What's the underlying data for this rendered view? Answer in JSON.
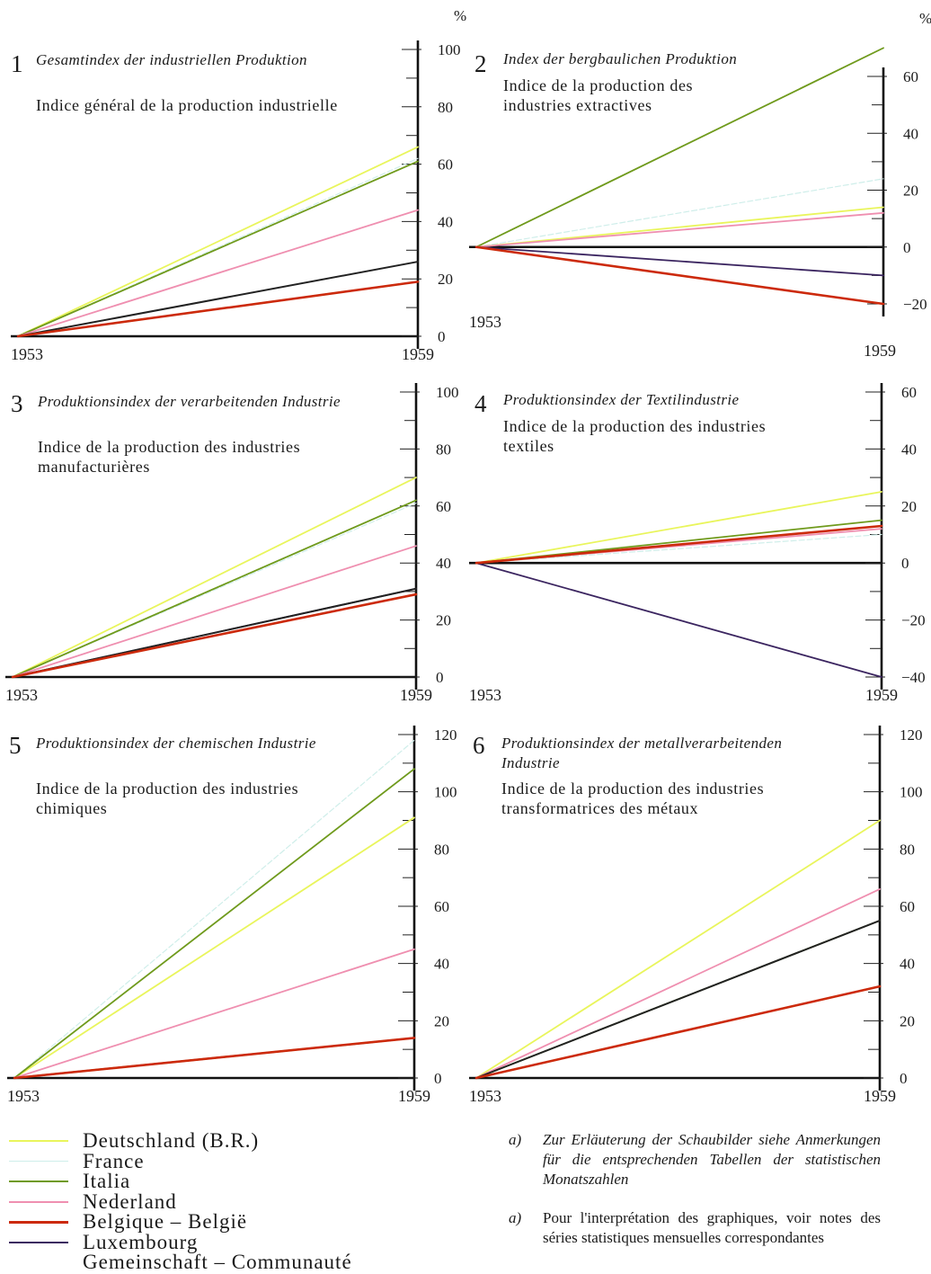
{
  "unit_label": "%",
  "series": [
    {
      "key": "de",
      "name": "Deutschland (B.R.)",
      "color": "#e9f55c"
    },
    {
      "key": "fr",
      "name": "France",
      "color": "#cfeeea"
    },
    {
      "key": "it",
      "name": "Italia",
      "color": "#6f9a1c"
    },
    {
      "key": "nl",
      "name": "Nederland",
      "color": "#ef8fb0"
    },
    {
      "key": "be",
      "name": "Belgique – België",
      "color": "#cc2a0c"
    },
    {
      "key": "lu",
      "name": "Luxembourg",
      "color": "#3b2560"
    },
    {
      "key": "co",
      "name": "Gemeinschaft – Communauté",
      "color": "#222222"
    }
  ],
  "panels": [
    {
      "number": "1",
      "title_de": "Gesamtindex der industriellen Produktion",
      "title_fr": "Indice général de la production industrielle"
    },
    {
      "number": "2",
      "title_de": "Index der bergbaulichen Produktion",
      "title_fr": "Indice de la production des industries extractives"
    },
    {
      "number": "3",
      "title_de": "Produktionsindex der verarbeitenden Industrie",
      "title_fr": "Indice de la production des industries manufacturières"
    },
    {
      "number": "4",
      "title_de": "Produktionsindex der Textilindustrie",
      "title_fr": "Indice de la production des industries textiles"
    },
    {
      "number": "5",
      "title_de": "Produktionsindex der chemischen Industrie",
      "title_fr": "Indice de la production des industries chimiques"
    },
    {
      "number": "6",
      "title_de": "Produktionsindex der metallverarbeitenden Industrie",
      "title_fr": "Indice de la production des industries transformatrices des métaux"
    }
  ],
  "notes": {
    "de_mark": "a)",
    "de_text": "Zur Erläuterung der Schaubilder siehe Anmerkungen für die entsprechenden Tabellen der statistischen Monatszahlen",
    "fr_mark": "a)",
    "fr_text": "Pour l'interprétation des graphiques, voir notes des séries statistiques mensuelles correspondantes"
  },
  "chart_data": [
    {
      "type": "line",
      "x": [
        "1953",
        "1959"
      ],
      "ylim": [
        0,
        100
      ],
      "yticks": [
        "0",
        "20",
        "40",
        "60",
        "80",
        "100"
      ],
      "series": [
        {
          "name": "Deutschland (B.R.)",
          "values": [
            0,
            66
          ]
        },
        {
          "name": "France",
          "values": [
            0,
            62
          ]
        },
        {
          "name": "Italia",
          "values": [
            0,
            61
          ]
        },
        {
          "name": "Nederland",
          "values": [
            0,
            44
          ]
        },
        {
          "name": "Belgique – België",
          "values": [
            0,
            19
          ]
        },
        {
          "name": "Luxembourg",
          "values": [
            0,
            19
          ]
        },
        {
          "name": "Gemeinschaft – Communauté",
          "values": [
            0,
            26
          ]
        }
      ]
    },
    {
      "type": "line",
      "x": [
        "1953",
        "1959"
      ],
      "ylim": [
        -20,
        70
      ],
      "yticks": [
        "-20",
        "0",
        "20",
        "40",
        "60"
      ],
      "series": [
        {
          "name": "Deutschland (B.R.)",
          "values": [
            0,
            14
          ]
        },
        {
          "name": "France",
          "values": [
            0,
            24
          ]
        },
        {
          "name": "Italia",
          "values": [
            0,
            70
          ]
        },
        {
          "name": "Nederland",
          "values": [
            0,
            12
          ]
        },
        {
          "name": "Belgique – België",
          "values": [
            0,
            -20
          ]
        },
        {
          "name": "Luxembourg",
          "values": [
            0,
            -10
          ]
        },
        {
          "name": "Gemeinschaft – Communauté",
          "values": [
            0,
            0
          ]
        }
      ]
    },
    {
      "type": "line",
      "x": [
        "1953",
        "1959"
      ],
      "ylim": [
        0,
        100
      ],
      "yticks": [
        "0",
        "20",
        "40",
        "60",
        "80",
        "100"
      ],
      "series": [
        {
          "name": "Deutschland (B.R.)",
          "values": [
            0,
            70
          ]
        },
        {
          "name": "France",
          "values": [
            0,
            61
          ]
        },
        {
          "name": "Italia",
          "values": [
            0,
            62
          ]
        },
        {
          "name": "Nederland",
          "values": [
            0,
            46
          ]
        },
        {
          "name": "Belgique – België",
          "values": [
            0,
            29
          ]
        },
        {
          "name": "Luxembourg",
          "values": [
            0,
            31
          ]
        },
        {
          "name": "Gemeinschaft – Communauté",
          "values": [
            0,
            31
          ]
        }
      ]
    },
    {
      "type": "line",
      "x": [
        "1953",
        "1959"
      ],
      "ylim": [
        -40,
        60
      ],
      "yticks": [
        "-40",
        "-20",
        "0",
        "20",
        "40",
        "60"
      ],
      "series": [
        {
          "name": "Deutschland (B.R.)",
          "values": [
            0,
            25
          ]
        },
        {
          "name": "France",
          "values": [
            0,
            10
          ]
        },
        {
          "name": "Italia",
          "values": [
            0,
            15
          ]
        },
        {
          "name": "Nederland",
          "values": [
            0,
            12
          ]
        },
        {
          "name": "Belgique – België",
          "values": [
            0,
            13
          ]
        },
        {
          "name": "Luxembourg",
          "values": [
            0,
            -40
          ]
        },
        {
          "name": "Gemeinschaft – Communauté",
          "values": [
            0,
            0
          ]
        }
      ]
    },
    {
      "type": "line",
      "x": [
        "1953",
        "1959"
      ],
      "ylim": [
        0,
        120
      ],
      "yticks": [
        "0",
        "20",
        "40",
        "60",
        "80",
        "100",
        "120"
      ],
      "series": [
        {
          "name": "Deutschland (B.R.)",
          "values": [
            0,
            91
          ]
        },
        {
          "name": "France",
          "values": [
            0,
            118
          ]
        },
        {
          "name": "Italia",
          "values": [
            0,
            108
          ]
        },
        {
          "name": "Nederland",
          "values": [
            0,
            45
          ]
        },
        {
          "name": "Belgique – België",
          "values": [
            0,
            14
          ]
        },
        {
          "name": "Luxembourg",
          "values": [
            0,
            14
          ]
        },
        {
          "name": "Gemeinschaft – Communauté",
          "values": [
            0,
            14
          ]
        }
      ]
    },
    {
      "type": "line",
      "x": [
        "1953",
        "1959"
      ],
      "ylim": [
        0,
        120
      ],
      "yticks": [
        "0",
        "20",
        "40",
        "60",
        "80",
        "100",
        "120"
      ],
      "series": [
        {
          "name": "Deutschland (B.R.)",
          "values": [
            0,
            90
          ]
        },
        {
          "name": "France",
          "values": [
            0,
            55
          ]
        },
        {
          "name": "Italia",
          "values": [
            0,
            55
          ]
        },
        {
          "name": "Nederland",
          "values": [
            0,
            66
          ]
        },
        {
          "name": "Belgique – België",
          "values": [
            0,
            32
          ]
        },
        {
          "name": "Luxembourg",
          "values": [
            0,
            32
          ]
        },
        {
          "name": "Gemeinschaft – Communauté",
          "values": [
            0,
            55
          ]
        }
      ]
    }
  ]
}
